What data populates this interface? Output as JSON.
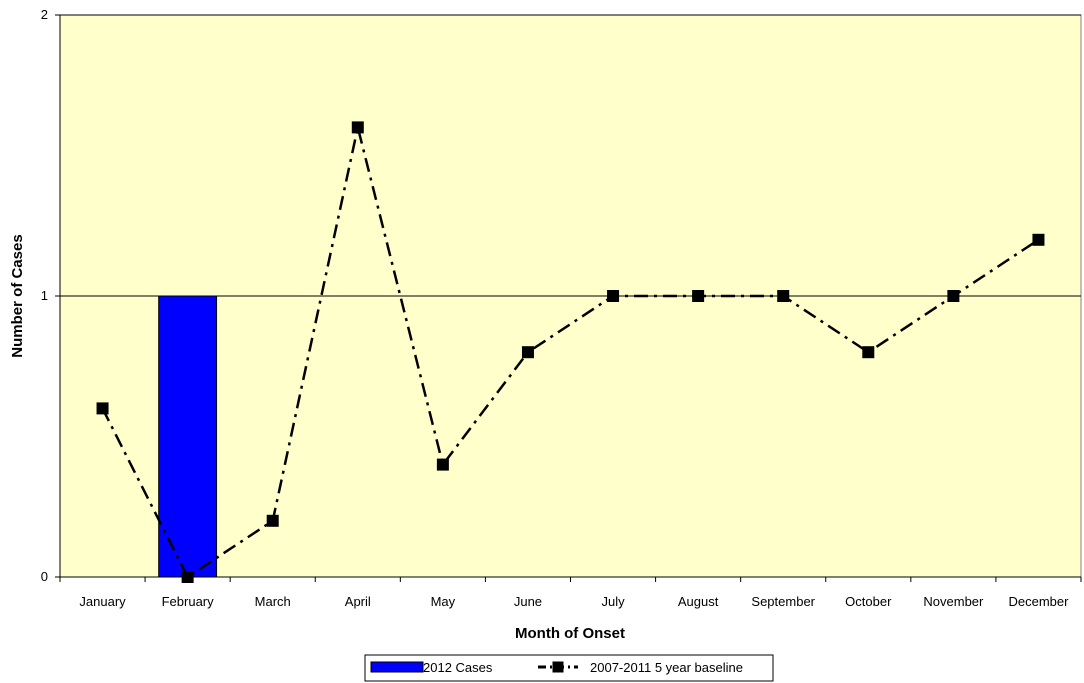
{
  "chart_data": {
    "type": "bar",
    "categories": [
      "January",
      "February",
      "March",
      "April",
      "May",
      "June",
      "July",
      "August",
      "September",
      "October",
      "November",
      "December"
    ],
    "series": [
      {
        "name": "2012 Cases",
        "type": "bar",
        "values": [
          0,
          1,
          0,
          0,
          0,
          0,
          0,
          0,
          0,
          0,
          0,
          0
        ],
        "color": "#0000FF"
      },
      {
        "name": "2007-2011 5 year baseline",
        "type": "line",
        "values": [
          0.6,
          0,
          0.2,
          1.6,
          0.4,
          0.8,
          1,
          1,
          1,
          0.8,
          1,
          1.2
        ],
        "color": "#000000",
        "line_style": "dash-dot",
        "marker": "square"
      }
    ],
    "title": "",
    "xlabel": "Month of Onset",
    "ylabel": "Number of Cases",
    "ylim": [
      0,
      2
    ],
    "yticks": [
      0,
      1,
      2
    ],
    "gridlines": "horizontal",
    "plot_background": "#FFFFCC",
    "legend_position": "bottom-center"
  }
}
